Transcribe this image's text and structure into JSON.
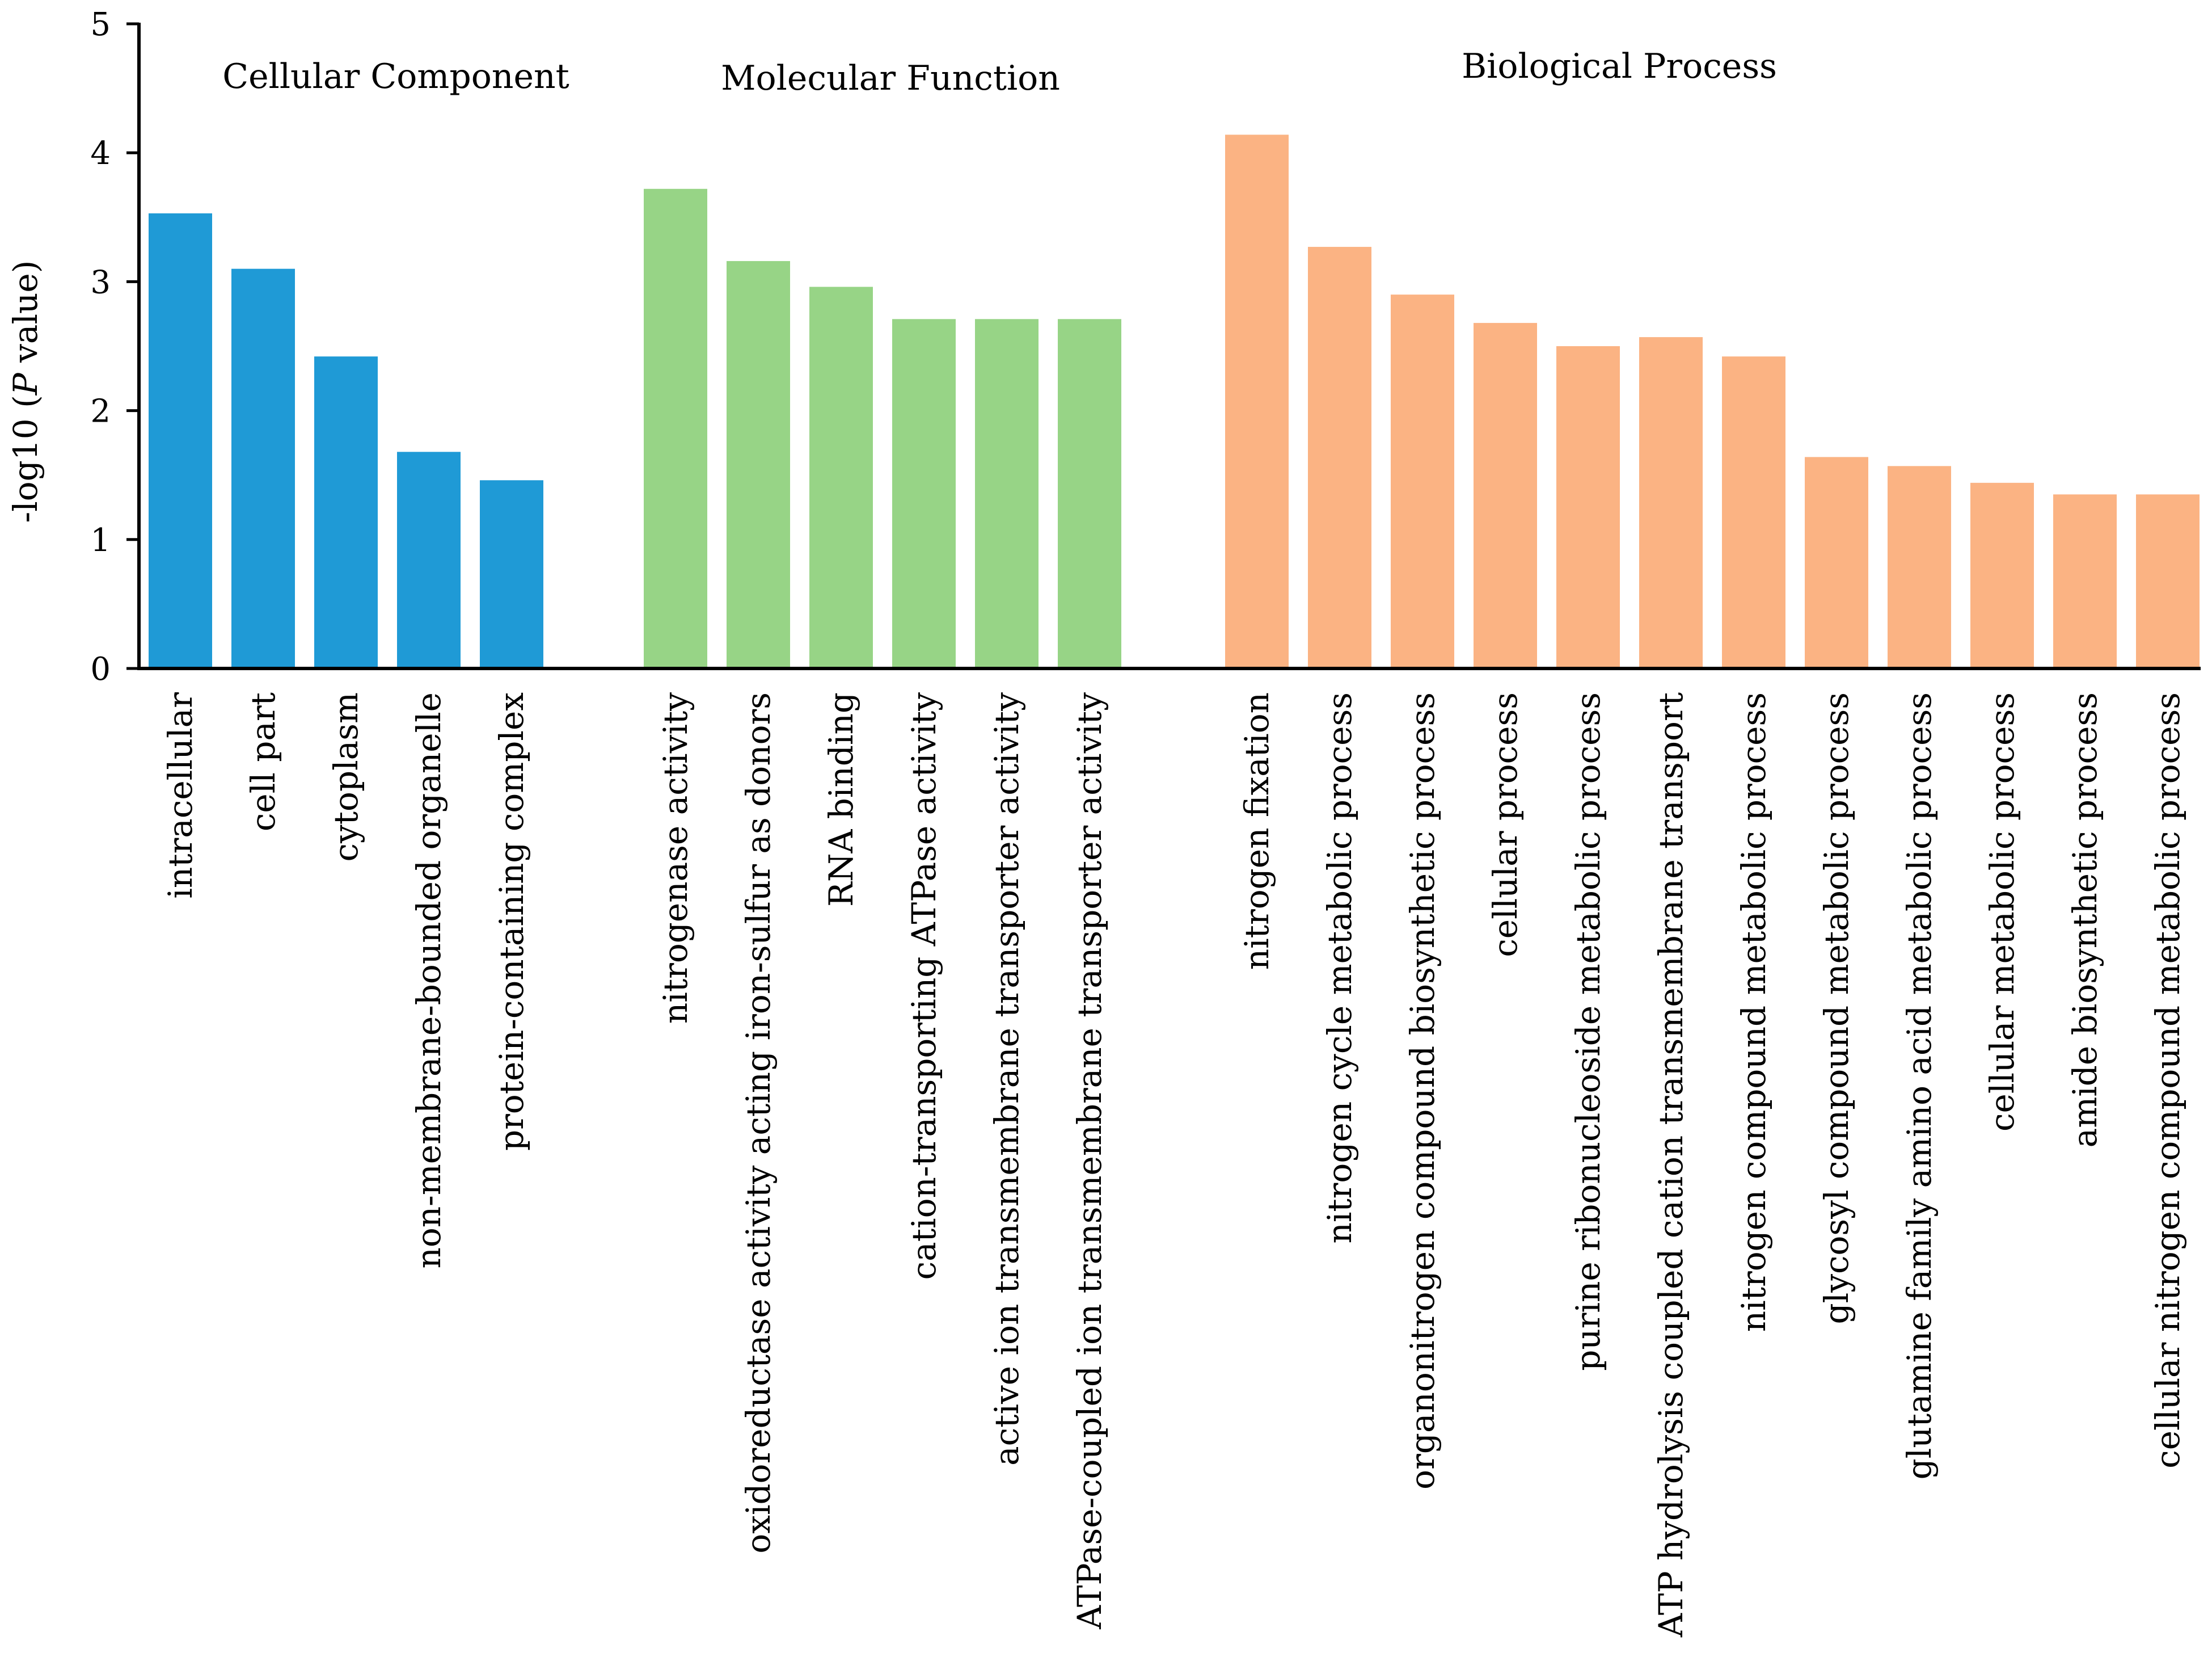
{
  "chart_data": {
    "type": "bar",
    "title": "",
    "xlabel": "",
    "ylabel": "-log10 (P value)",
    "ylabel_parts": {
      "prefix": "-log10 (",
      "italic": "P",
      "suffix": " value)"
    },
    "ylim": [
      0,
      5
    ],
    "yticks": [
      "0",
      "1",
      "2",
      "3",
      "4",
      "5"
    ],
    "grid": false,
    "legend": "none",
    "groups": [
      {
        "name": "Cellular Component",
        "color": "#1f9ad6",
        "categories": [
          "intracellular",
          "cell part",
          "cytoplasm",
          "non-membrane-bounded organelle",
          "protein-containing complex"
        ],
        "values": [
          3.53,
          3.1,
          2.42,
          1.68,
          1.46
        ]
      },
      {
        "name": "Molecular Function",
        "color": "#97d486",
        "categories": [
          "nitrogenase activity",
          "oxidoreductase activity acting iron-sulfur as donors",
          "RNA binding",
          "cation-transporting ATPase activity",
          "active ion transmembrane transporter activity",
          "ATPase-coupled ion transmembrane transporter activity"
        ],
        "values": [
          3.72,
          3.16,
          2.96,
          2.71,
          2.71,
          2.71
        ]
      },
      {
        "name": "Biological Process",
        "color": "#fbb383",
        "categories": [
          "nitrogen fixation",
          "nitrogen cycle metabolic process",
          "organonitrogen compound biosynthetic process",
          "cellular process",
          "purine ribonucleoside metabolic process",
          "ATP hydrolysis coupled cation transmembrane transport",
          "nitrogen compound metabolic process",
          "glycosyl compound metabolic process",
          "glutamine family amino acid metabolic process",
          "cellular metabolic process",
          "amide biosynthetic process",
          "cellular nitrogen compound metabolic process"
        ],
        "values": [
          4.14,
          3.27,
          2.9,
          2.68,
          2.5,
          2.57,
          2.42,
          1.64,
          1.57,
          1.44,
          1.35,
          1.35
        ]
      }
    ]
  }
}
